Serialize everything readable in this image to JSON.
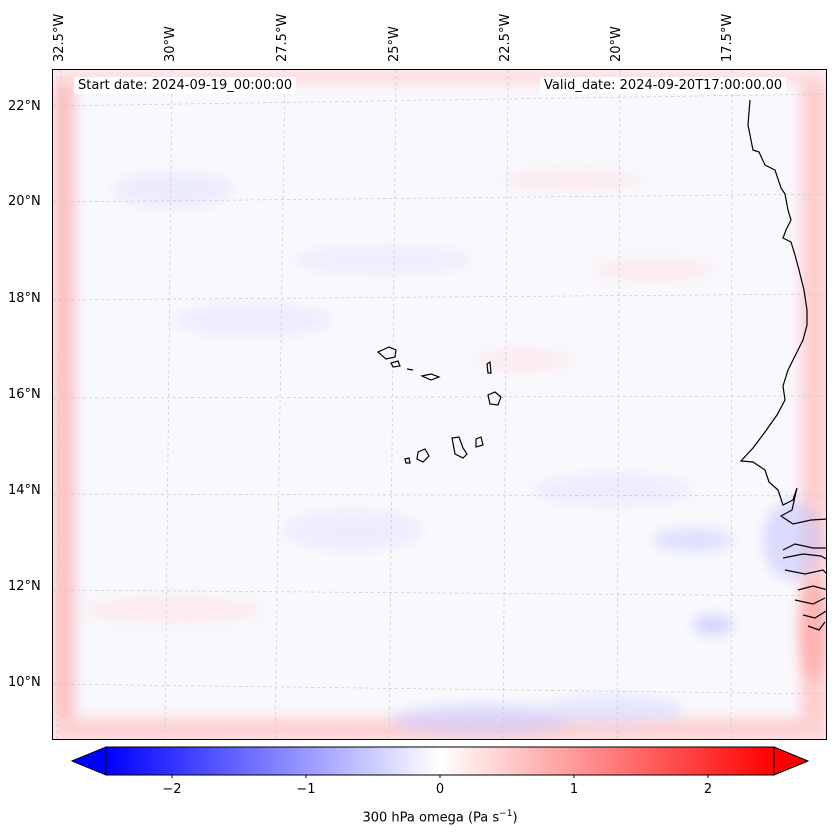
{
  "map": {
    "start_date": "Start date: 2024-09-19_00:00:00",
    "valid_date": "Valid_date: 2024-09-20T17:00:00.00",
    "lon_labels": [
      "32.5°W",
      "30°W",
      "27.5°W",
      "25°W",
      "22.5°W",
      "20°W",
      "17.5°W"
    ],
    "lat_labels": [
      "22°N",
      "20°N",
      "18°N",
      "16°N",
      "14°N",
      "12°N",
      "10°N"
    ],
    "colorbar": {
      "ticks": [
        "−2",
        "−1",
        "0",
        "1",
        "2"
      ],
      "label_main": "300 hPa omega (Pa s",
      "label_sup": "−1",
      "label_end": ")",
      "colors": {
        "low": "#0000ff",
        "mid": "#ffffff",
        "high": "#ff0000"
      }
    }
  }
}
